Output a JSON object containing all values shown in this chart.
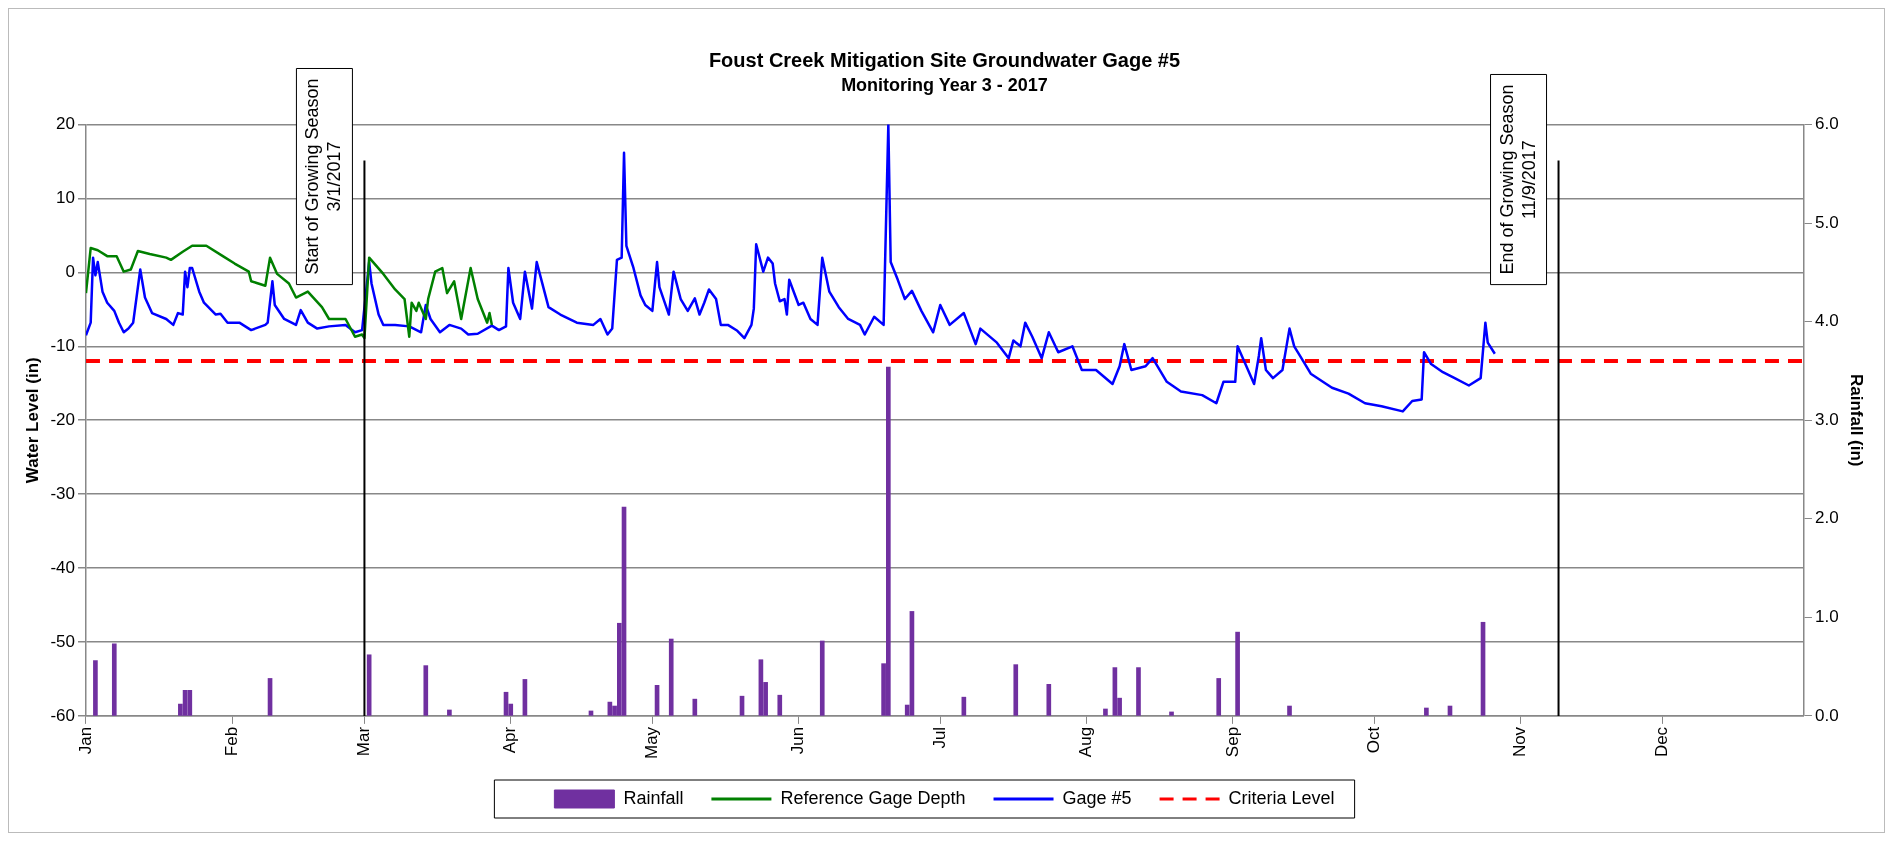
{
  "chart_data": {
    "type": "line",
    "title": "Foust Creek Mitigation Site Groundwater Gage #5",
    "subtitle": "Monitoring Year 3 - 2017",
    "ylabel": "Water Level (in)",
    "y2label": "Rainfall (in)",
    "xlim": [
      "2017-01-01",
      "2017-12-31"
    ],
    "xticks": [
      {
        "value": "2017-01-01",
        "label": "Jan"
      },
      {
        "value": "2017-02-01",
        "label": "Feb"
      },
      {
        "value": "2017-03-01",
        "label": "Mar"
      },
      {
        "value": "2017-04-01",
        "label": "Apr"
      },
      {
        "value": "2017-05-01",
        "label": "May"
      },
      {
        "value": "2017-06-01",
        "label": "Jun"
      },
      {
        "value": "2017-07-01",
        "label": "Jul"
      },
      {
        "value": "2017-08-01",
        "label": "Aug"
      },
      {
        "value": "2017-09-01",
        "label": "Sep"
      },
      {
        "value": "2017-10-01",
        "label": "Oct"
      },
      {
        "value": "2017-11-01",
        "label": "Nov"
      },
      {
        "value": "2017-12-01",
        "label": "Dec"
      }
    ],
    "ylim": [
      -60,
      20
    ],
    "yticks": [
      -60,
      -50,
      -40,
      -30,
      -20,
      -10,
      0,
      10,
      20
    ],
    "y2lim": [
      0,
      6
    ],
    "y2ticks": [
      {
        "value": 0,
        "label": "0.0"
      },
      {
        "value": 1,
        "label": "1.0"
      },
      {
        "value": 2,
        "label": "2.0"
      },
      {
        "value": 3,
        "label": "3.0"
      },
      {
        "value": 4,
        "label": "4.0"
      },
      {
        "value": 5,
        "label": "5.0"
      },
      {
        "value": 6,
        "label": "6.0"
      }
    ],
    "grid": "y",
    "legend": "bottom",
    "marker": "none",
    "ref_lines": [
      {
        "axis": "x",
        "value": "2017-03-01",
        "label": "Start of Growing Season\n3/1/2017",
        "color": "#000000"
      },
      {
        "axis": "x",
        "value": "2017-11-09",
        "label": "End of Growing Season\n11/9/2017",
        "color": "#000000"
      }
    ],
    "series": [
      {
        "name": "Rainfall",
        "type": "bar",
        "axis": "y2",
        "color": "#7030a0",
        "x": [
          "2017-01-03",
          "2017-01-07",
          "2017-01-21",
          "2017-01-22",
          "2017-01-23",
          "2017-02-09",
          "2017-03-02",
          "2017-03-14",
          "2017-03-19",
          "2017-03-31",
          "2017-04-01",
          "2017-04-04",
          "2017-04-18",
          "2017-04-22",
          "2017-04-23",
          "2017-04-24",
          "2017-04-25",
          "2017-05-02",
          "2017-05-05",
          "2017-05-10",
          "2017-05-20",
          "2017-05-24",
          "2017-05-25",
          "2017-05-28",
          "2017-06-06",
          "2017-06-19",
          "2017-06-20",
          "2017-06-24",
          "2017-06-25",
          "2017-07-06",
          "2017-07-17",
          "2017-07-24",
          "2017-08-05",
          "2017-08-07",
          "2017-08-08",
          "2017-08-12",
          "2017-08-19",
          "2017-08-29",
          "2017-09-02",
          "2017-09-13",
          "2017-10-12",
          "2017-10-17",
          "2017-10-24"
        ],
        "values": [
          0.56,
          0.73,
          0.12,
          0.26,
          0.26,
          0.38,
          0.62,
          0.51,
          0.06,
          0.24,
          0.12,
          0.37,
          0.05,
          0.14,
          0.1,
          0.94,
          2.12,
          0.31,
          0.78,
          0.17,
          0.2,
          0.57,
          0.34,
          0.21,
          0.76,
          0.53,
          3.54,
          0.11,
          1.06,
          0.19,
          0.52,
          0.32,
          0.07,
          0.49,
          0.18,
          0.49,
          0.04,
          0.38,
          0.85,
          0.1,
          0.08,
          0.1,
          0.95
        ]
      },
      {
        "name": "Reference Gage Depth",
        "color": "#008000",
        "x": [
          "2017-01-01",
          "2017-01-02",
          "2017-01-03T12:00",
          "2017-01-05T12:00",
          "2017-01-07T12:00",
          "2017-01-09",
          "2017-01-10T12:00",
          "2017-01-12",
          "2017-01-14T12:00",
          "2017-01-18",
          "2017-01-19",
          "2017-01-21T12:00",
          "2017-01-23T12:00",
          "2017-01-26T12:00",
          "2017-01-30",
          "2017-02-01T12:00",
          "2017-02-04T12:00",
          "2017-02-05",
          "2017-02-08",
          "2017-02-09",
          "2017-02-10T12:00",
          "2017-02-13",
          "2017-02-14T12:00",
          "2017-02-17",
          "2017-02-20",
          "2017-02-21T12:00",
          "2017-02-25",
          "2017-02-27",
          "2017-02-28T12:00",
          "2017-03-01",
          "2017-03-02",
          "2017-03-05",
          "2017-03-07T12:00",
          "2017-03-09T12:00",
          "2017-03-10T12:00",
          "2017-03-11",
          "2017-03-12",
          "2017-03-12T12:00",
          "2017-03-14",
          "2017-03-14T12:00",
          "2017-03-16",
          "2017-03-17T12:00",
          "2017-03-18T12:00",
          "2017-03-20",
          "2017-03-21T12:00",
          "2017-03-23T12:00",
          "2017-03-25",
          "2017-03-27",
          "2017-03-27T12:00",
          "2017-03-28"
        ],
        "values": [
          -2.8,
          3.3,
          3.0,
          2.2,
          2.2,
          0.1,
          0.4,
          2.9,
          2.5,
          2.0,
          1.7,
          2.8,
          3.6,
          3.6,
          2.2,
          1.2,
          0.1,
          -1.2,
          -1.8,
          2.0,
          -0.2,
          -1.5,
          -3.4,
          -2.6,
          -4.7,
          -6.3,
          -6.3,
          -8.7,
          -8.4,
          -8.9,
          2.0,
          -0.2,
          -2.3,
          -3.6,
          -8.7,
          -4.1,
          -5.2,
          -4.1,
          -6.3,
          -3.6,
          0.1,
          0.6,
          -2.8,
          -1.2,
          -6.3,
          0.6,
          -3.6,
          -6.8,
          -5.5,
          -7.1
        ]
      },
      {
        "name": "Gage #5",
        "color": "#0000ff",
        "x": [
          "2017-01-01",
          "2017-01-02",
          "2017-01-02T12:00",
          "2017-01-03",
          "2017-01-03T12:00",
          "2017-01-04T12:00",
          "2017-01-05T12:00",
          "2017-01-07",
          "2017-01-08",
          "2017-01-09",
          "2017-01-10",
          "2017-01-11",
          "2017-01-12T12:00",
          "2017-01-13T12:00",
          "2017-01-15",
          "2017-01-18",
          "2017-01-19T12:00",
          "2017-01-20T12:00",
          "2017-01-21T12:00",
          "2017-01-22",
          "2017-01-22T12:00",
          "2017-01-23",
          "2017-01-23T12:00",
          "2017-01-25",
          "2017-01-26",
          "2017-01-28T12:00",
          "2017-01-29T12:00",
          "2017-01-31",
          "2017-02-02T12:00",
          "2017-02-05",
          "2017-02-08",
          "2017-02-08T12:00",
          "2017-02-09T12:00",
          "2017-02-10",
          "2017-02-12",
          "2017-02-14T12:00",
          "2017-02-15T12:00",
          "2017-02-17",
          "2017-02-19",
          "2017-02-21T12:00",
          "2017-02-25",
          "2017-02-27",
          "2017-02-28T12:00",
          "2017-03-02",
          "2017-03-02T12:00",
          "2017-03-04",
          "2017-03-05",
          "2017-03-07T12:00",
          "2017-03-10T12:00",
          "2017-03-13",
          "2017-03-14",
          "2017-03-15",
          "2017-03-17",
          "2017-03-19",
          "2017-03-21T12:00",
          "2017-03-23",
          "2017-03-25",
          "2017-03-28",
          "2017-03-29T12:00",
          "2017-03-31",
          "2017-03-31T12:00",
          "2017-04-01T12:00",
          "2017-04-03",
          "2017-04-04",
          "2017-04-05T12:00",
          "2017-04-06T12:00",
          "2017-04-09",
          "2017-04-11T12:00",
          "2017-04-15",
          "2017-04-18T12:00",
          "2017-04-20",
          "2017-04-21T12:00",
          "2017-04-22T12:00",
          "2017-04-23T12:00",
          "2017-04-24T12:00",
          "2017-04-25",
          "2017-04-25T12:00",
          "2017-04-27",
          "2017-04-28T12:00",
          "2017-04-29T12:00",
          "2017-05-01",
          "2017-05-02",
          "2017-05-02T12:00",
          "2017-05-04T12:00",
          "2017-05-05T12:00",
          "2017-05-07",
          "2017-05-08T12:00",
          "2017-05-10",
          "2017-05-11",
          "2017-05-12",
          "2017-05-13",
          "2017-05-14T12:00",
          "2017-05-15T12:00",
          "2017-05-17",
          "2017-05-19",
          "2017-05-20T12:00",
          "2017-05-22",
          "2017-05-22T12:00",
          "2017-05-23",
          "2017-05-24T12:00",
          "2017-05-25T12:00",
          "2017-05-26T12:00",
          "2017-05-27",
          "2017-05-28",
          "2017-05-29",
          "2017-05-29T12:00",
          "2017-05-30",
          "2017-06-01",
          "2017-06-02",
          "2017-06-03T12:00",
          "2017-06-05",
          "2017-06-06",
          "2017-06-07T12:00",
          "2017-06-09T12:00",
          "2017-06-11T12:00",
          "2017-06-14",
          "2017-06-15",
          "2017-06-17",
          "2017-06-19",
          "2017-06-20",
          "2017-06-20T12:00",
          "2017-06-22",
          "2017-06-23T12:00",
          "2017-06-25",
          "2017-06-27",
          "2017-06-29T12:00",
          "2017-07-01",
          "2017-07-03",
          "2017-07-06",
          "2017-07-08T12:00",
          "2017-07-09T12:00",
          "2017-07-13",
          "2017-07-15T12:00",
          "2017-07-16T12:00",
          "2017-07-18",
          "2017-07-19",
          "2017-07-20T12:00",
          "2017-07-22T12:00",
          "2017-07-24",
          "2017-07-26",
          "2017-07-29",
          "2017-07-31",
          "2017-08-03",
          "2017-08-06T12:00",
          "2017-08-08",
          "2017-08-09",
          "2017-08-10T12:00",
          "2017-08-13T12:00",
          "2017-08-15",
          "2017-08-18",
          "2017-08-21",
          "2017-08-25T12:00",
          "2017-08-28T12:00",
          "2017-08-30",
          "2017-09-01T12:00",
          "2017-09-02",
          "2017-09-04",
          "2017-09-05T12:00",
          "2017-09-06T12:00",
          "2017-09-07",
          "2017-09-08",
          "2017-09-09T12:00",
          "2017-09-11T12:00",
          "2017-09-13",
          "2017-09-14",
          "2017-09-16",
          "2017-09-17T12:00",
          "2017-09-22",
          "2017-09-25T12:00",
          "2017-09-29",
          "2017-10-02T12:00",
          "2017-10-07",
          "2017-10-09",
          "2017-10-11",
          "2017-10-11T12:00",
          "2017-10-13",
          "2017-10-15T12:00",
          "2017-10-18",
          "2017-10-21",
          "2017-10-23T12:00",
          "2017-10-24T12:00",
          "2017-10-25",
          "2017-10-26T12:00"
        ],
        "values": [
          -8.5,
          -6.8,
          2.0,
          -0.4,
          1.4,
          -2.6,
          -4.1,
          -5.2,
          -6.8,
          -8.1,
          -7.6,
          -6.8,
          0.4,
          -3.4,
          -5.5,
          -6.3,
          -7.1,
          -5.5,
          -5.7,
          0.1,
          -2.0,
          0.6,
          0.6,
          -2.6,
          -4.1,
          -5.7,
          -5.6,
          -6.8,
          -6.8,
          -7.8,
          -7.1,
          -6.8,
          -1.2,
          -4.4,
          -6.3,
          -7.1,
          -5.1,
          -6.8,
          -7.6,
          -7.3,
          -7.1,
          -8.1,
          -7.8,
          1.4,
          -1.5,
          -5.7,
          -7.1,
          -7.1,
          -7.3,
          -8.1,
          -4.4,
          -6.3,
          -8.1,
          -7.1,
          -7.6,
          -8.4,
          -8.3,
          -7.2,
          -7.8,
          -7.3,
          0.6,
          -4.1,
          -6.3,
          0.1,
          -4.9,
          1.4,
          -4.7,
          -5.7,
          -6.8,
          -7.1,
          -6.3,
          -8.4,
          -7.6,
          1.7,
          2.0,
          16.2,
          3.6,
          0.6,
          -3.1,
          -4.4,
          -5.2,
          1.4,
          -2.0,
          -5.7,
          0.1,
          -3.6,
          -5.2,
          -3.5,
          -5.7,
          -4.1,
          -2.3,
          -3.6,
          -7.1,
          -7.1,
          -7.9,
          -8.9,
          -7.1,
          -4.9,
          3.8,
          0.1,
          2.0,
          1.2,
          -1.5,
          -3.9,
          -3.6,
          -5.7,
          -1.0,
          -4.4,
          -4.1,
          -6.3,
          -7.1,
          2.0,
          -2.6,
          -4.7,
          -6.3,
          -7.1,
          -8.4,
          -6.0,
          -7.1,
          20,
          1.4,
          -1.0,
          -3.6,
          -2.5,
          -5.2,
          -8.1,
          -4.4,
          -7.1,
          -5.5,
          -9.7,
          -7.6,
          -9.5,
          -11.6,
          -9.2,
          -10,
          -6.8,
          -8.7,
          -11.6,
          -8.1,
          -10.8,
          -10,
          -13.2,
          -13.2,
          -15.1,
          -12.7,
          -9.7,
          -13.2,
          -12.7,
          -11.6,
          -14.8,
          -16.1,
          -16.6,
          -17.7,
          -14.8,
          -14.8,
          -10,
          -12.9,
          -15.1,
          -11.3,
          -8.9,
          -13.2,
          -14.3,
          -13.2,
          -7.6,
          -10,
          -12.1,
          -13.7,
          -15.6,
          -16.4,
          -17.7,
          -18.1,
          -18.8,
          -17.4,
          -17.2,
          -10.8,
          -12.4,
          -13.5,
          -14.3,
          -15.3,
          -14.3,
          -6.8,
          -9.5,
          -11
        ]
      },
      {
        "name": "Criteria Level",
        "color": "#ff0000",
        "line_style": "dashed",
        "x": [
          "2017-01-01",
          "2017-12-31"
        ],
        "values": [
          -12,
          -12
        ]
      }
    ]
  }
}
